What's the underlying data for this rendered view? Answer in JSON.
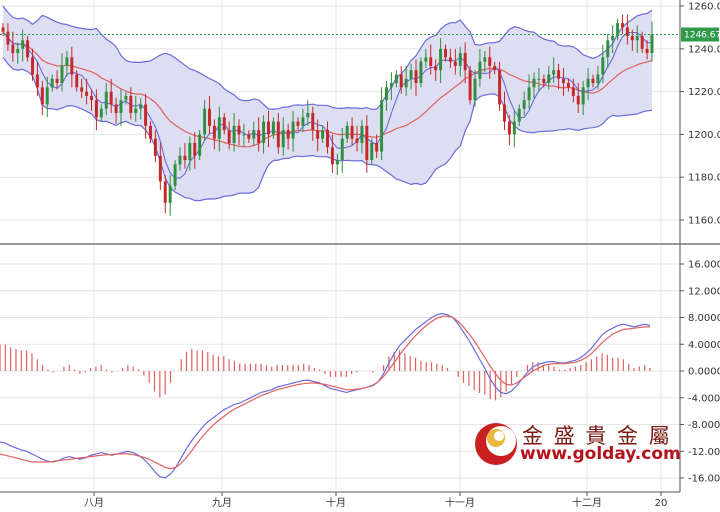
{
  "chart_data": [
    {
      "type": "candlestick",
      "panel": "price",
      "overlays": [
        "bollinger-bands",
        "moving-average"
      ],
      "x_tick_labels": [
        "八月",
        "九月",
        "十月",
        "十一月",
        "十二月",
        "20"
      ],
      "y_tick_labels": [
        "1260.0",
        "1240.0",
        "1220.0",
        "1200.0",
        "1180.00",
        "1160.00"
      ],
      "ylim": [
        1150,
        1265
      ],
      "last_price_label": "1246.67",
      "last_price": 1246.67,
      "grid": true,
      "colors": {
        "up": "#2f8f3f",
        "down": "#c62828",
        "band": "#6b6bdc",
        "band_fill": "#dedef2",
        "ma": "#e06060",
        "last": "#2e9a4a"
      },
      "close": [
        1248,
        1242,
        1238,
        1240,
        1244,
        1236,
        1228,
        1222,
        1214,
        1222,
        1226,
        1224,
        1232,
        1236,
        1228,
        1222,
        1220,
        1218,
        1216,
        1208,
        1212,
        1220,
        1214,
        1210,
        1216,
        1218,
        1210,
        1212,
        1214,
        1204,
        1198,
        1190,
        1178,
        1168,
        1176,
        1186,
        1190,
        1188,
        1196,
        1190,
        1200,
        1212,
        1204,
        1198,
        1208,
        1202,
        1196,
        1204,
        1200,
        1200,
        1198,
        1202,
        1196,
        1206,
        1200,
        1206,
        1194,
        1202,
        1198,
        1206,
        1204,
        1208,
        1210,
        1202,
        1198,
        1202,
        1194,
        1186,
        1188,
        1198,
        1204,
        1198,
        1196,
        1204,
        1188,
        1196,
        1192,
        1216,
        1222,
        1224,
        1228,
        1222,
        1226,
        1230,
        1224,
        1234,
        1236,
        1232,
        1230,
        1240,
        1236,
        1234,
        1232,
        1238,
        1230,
        1216,
        1226,
        1234,
        1236,
        1232,
        1230,
        1214,
        1206,
        1200,
        1206,
        1212,
        1216,
        1222,
        1226,
        1226,
        1224,
        1228,
        1230,
        1226,
        1224,
        1222,
        1218,
        1214,
        1222,
        1226,
        1224,
        1228,
        1236,
        1244,
        1246,
        1252,
        1250,
        1246,
        1244,
        1246,
        1240,
        1238,
        1246.67
      ],
      "macd_ref": true
    },
    {
      "type": "macd",
      "panel": "macd",
      "y_tick_labels": [
        "16.0000",
        "12.0000",
        "8.0000",
        "4.0000",
        "0.0000",
        "-4.0000",
        "-8.0000",
        "-12.0000",
        "-16.0000"
      ],
      "ylim": [
        -17,
        18
      ],
      "colors": {
        "macd": "#6b6bdc",
        "signal": "#e06060",
        "histogram": "#e06060"
      },
      "macd": [
        -10.6,
        -10.8,
        -11.2,
        -11.5,
        -11.8,
        -12.0,
        -12.4,
        -12.8,
        -13.2,
        -13.5,
        -13.6,
        -13.4,
        -13.0,
        -12.8,
        -13.0,
        -13.2,
        -13.0,
        -12.6,
        -12.4,
        -12.2,
        -12.4,
        -12.6,
        -12.4,
        -12.2,
        -12.0,
        -12.2,
        -12.6,
        -13.2,
        -14.0,
        -15.0,
        -15.8,
        -16.0,
        -15.4,
        -14.4,
        -13.0,
        -11.6,
        -10.4,
        -9.4,
        -8.4,
        -7.6,
        -7.0,
        -6.4,
        -5.8,
        -5.4,
        -5.0,
        -4.8,
        -4.4,
        -4.0,
        -3.6,
        -3.2,
        -3.0,
        -2.8,
        -2.4,
        -2.2,
        -2.0,
        -1.8,
        -1.6,
        -1.4,
        -1.4,
        -1.6,
        -1.8,
        -2.2,
        -2.6,
        -2.8,
        -3.0,
        -3.2,
        -3.0,
        -2.8,
        -2.6,
        -2.4,
        -2.2,
        -1.6,
        -0.4,
        1.2,
        2.6,
        3.8,
        4.6,
        5.4,
        6.2,
        6.8,
        7.4,
        8.0,
        8.4,
        8.6,
        8.4,
        8.0,
        7.0,
        5.8,
        4.6,
        3.2,
        1.8,
        0.4,
        -1.2,
        -2.4,
        -3.2,
        -3.4,
        -3.0,
        -2.2,
        -1.2,
        -0.2,
        0.6,
        1.0,
        1.2,
        1.4,
        1.4,
        1.2,
        1.2,
        1.4,
        1.6,
        2.0,
        2.6,
        3.4,
        4.4,
        5.4,
        6.0,
        6.4,
        6.8,
        7.0,
        6.8,
        6.6,
        6.8,
        7.0,
        6.8
      ],
      "signal": [
        -12.4,
        -12.6,
        -12.8,
        -13.0,
        -13.2,
        -13.4,
        -13.6,
        -13.6,
        -13.6,
        -13.6,
        -13.5,
        -13.4,
        -13.3,
        -13.2,
        -13.1,
        -13.0,
        -12.9,
        -12.8,
        -12.7,
        -12.6,
        -12.5,
        -12.5,
        -12.4,
        -12.4,
        -12.4,
        -12.5,
        -12.7,
        -12.9,
        -13.2,
        -13.6,
        -14.0,
        -14.4,
        -14.6,
        -14.4,
        -13.8,
        -12.9,
        -11.9,
        -10.8,
        -9.8,
        -8.9,
        -8.1,
        -7.4,
        -6.8,
        -6.2,
        -5.7,
        -5.3,
        -4.9,
        -4.5,
        -4.1,
        -3.7,
        -3.4,
        -3.1,
        -2.8,
        -2.6,
        -2.4,
        -2.2,
        -2.0,
        -1.9,
        -1.8,
        -1.8,
        -1.9,
        -2.0,
        -2.2,
        -2.4,
        -2.6,
        -2.8,
        -2.8,
        -2.7,
        -2.6,
        -2.4,
        -2.1,
        -1.6,
        -0.8,
        0.2,
        1.3,
        2.4,
        3.4,
        4.4,
        5.3,
        6.1,
        6.8,
        7.4,
        7.9,
        8.2,
        8.2,
        8.0,
        7.4,
        6.6,
        5.6,
        4.5,
        3.3,
        2.0,
        0.7,
        -0.4,
        -1.4,
        -2.0,
        -2.1,
        -1.8,
        -1.2,
        -0.6,
        0.0,
        0.4,
        0.8,
        1.0,
        1.1,
        1.1,
        1.1,
        1.2,
        1.3,
        1.6,
        2.0,
        2.6,
        3.4,
        4.2,
        4.9,
        5.5,
        5.9,
        6.2,
        6.3,
        6.4,
        6.5,
        6.6,
        6.6
      ]
    }
  ],
  "watermark": {
    "brand_name": "金 盛 貴 金 屬",
    "url": "www.golday.com"
  }
}
